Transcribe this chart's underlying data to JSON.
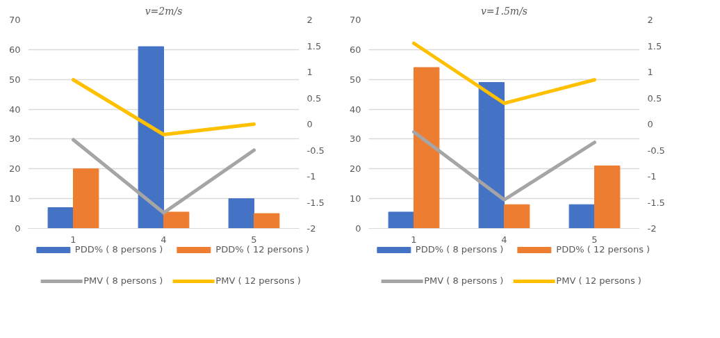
{
  "chart_data": [
    {
      "type": "bar",
      "title": "v=2m/s",
      "categories": [
        "1",
        "4",
        "5"
      ],
      "series": [
        {
          "name": "PDD% ( 8 persons )",
          "color": "#4472c4",
          "values": [
            7,
            61,
            10
          ]
        },
        {
          "name": "PDD% ( 12 persons )",
          "color": "#ed7d31",
          "values": [
            20,
            5.5,
            5
          ]
        },
        {
          "name": "PMV ( 8 persons )",
          "type": "line",
          "axis": "y2",
          "color": "#a5a5a5",
          "values": [
            -0.3,
            -1.7,
            -0.5
          ]
        },
        {
          "name": "PMV ( 12 persons )",
          "type": "line",
          "axis": "y2",
          "color": "#ffc000",
          "values": [
            0.85,
            -0.2,
            0
          ]
        }
      ],
      "ylim": [
        0,
        70
      ],
      "yticks": [
        0,
        10,
        20,
        30,
        40,
        50,
        60,
        70
      ],
      "y2lim": [
        -2,
        2
      ],
      "y2ticks": [
        -2,
        -1.5,
        -1,
        -0.5,
        0,
        0.5,
        1,
        1.5,
        2
      ],
      "grid": "y",
      "legend": "bottom",
      "marker": "none",
      "line_style": "solid"
    },
    {
      "type": "bar",
      "title": "v=1.5m/s",
      "categories": [
        "1",
        "4",
        "5"
      ],
      "series": [
        {
          "name": "PDD% ( 8 persons )",
          "color": "#4472c4",
          "values": [
            5.5,
            49,
            8
          ]
        },
        {
          "name": "PDD% ( 12 persons )",
          "color": "#ed7d31",
          "values": [
            54,
            8,
            21
          ]
        },
        {
          "name": "PMV ( 8 persons )",
          "type": "line",
          "axis": "y2",
          "color": "#a5a5a5",
          "values": [
            -0.15,
            -1.45,
            -0.35
          ]
        },
        {
          "name": "PMV ( 12 persons )",
          "type": "line",
          "axis": "y2",
          "color": "#ffc000",
          "values": [
            1.55,
            0.4,
            0.85
          ]
        }
      ],
      "ylim": [
        0,
        70
      ],
      "yticks": [
        0,
        10,
        20,
        30,
        40,
        50,
        60,
        70
      ],
      "y2lim": [
        -2,
        2
      ],
      "y2ticks": [
        -2,
        -1.5,
        -1,
        -0.5,
        0,
        0.5,
        1,
        1.5,
        2
      ],
      "grid": "y",
      "legend": "bottom",
      "marker": "none",
      "line_style": "solid"
    }
  ]
}
